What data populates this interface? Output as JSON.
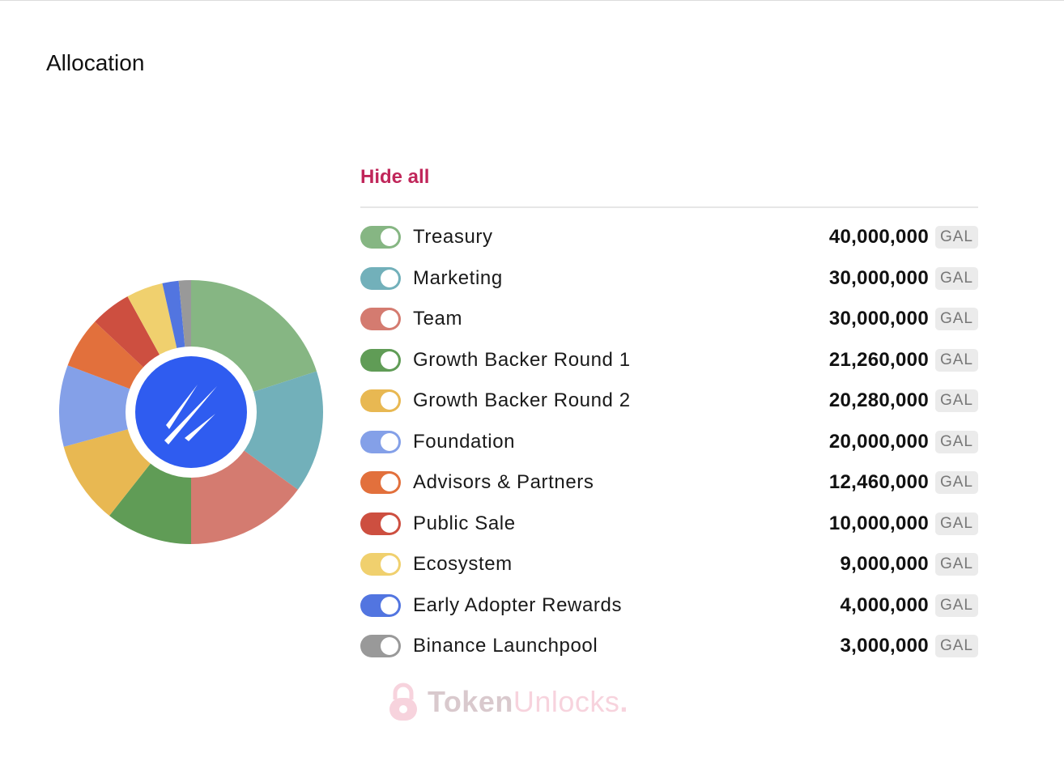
{
  "section": {
    "title": "Allocation"
  },
  "legend_controls": {
    "hide_all_label": "Hide all"
  },
  "unit": "GAL",
  "logo": {
    "icon": "gal-logo-icon",
    "color": "#2f5cf0"
  },
  "watermark": {
    "brand_part1": "Token",
    "brand_part2": "Unlocks",
    "brand_dot": "."
  },
  "chart_data": {
    "type": "pie",
    "title": "",
    "slices": [
      {
        "label": "Treasury",
        "value": 40000000,
        "display": "40,000,000",
        "color": "#86b683",
        "enabled": true
      },
      {
        "label": "Marketing",
        "value": 30000000,
        "display": "30,000,000",
        "color": "#72b0ba",
        "enabled": true
      },
      {
        "label": "Team",
        "value": 30000000,
        "display": "30,000,000",
        "color": "#d47b70",
        "enabled": true
      },
      {
        "label": "Growth Backer Round 1",
        "value": 21260000,
        "display": "21,260,000",
        "color": "#609c56",
        "enabled": true
      },
      {
        "label": "Growth Backer Round 2",
        "value": 20280000,
        "display": "20,280,000",
        "color": "#e8b852",
        "enabled": true
      },
      {
        "label": "Foundation",
        "value": 20000000,
        "display": "20,000,000",
        "color": "#84a0e8",
        "enabled": true
      },
      {
        "label": "Advisors & Partners",
        "value": 12460000,
        "display": "12,460,000",
        "color": "#e2703c",
        "enabled": true
      },
      {
        "label": "Public Sale",
        "value": 10000000,
        "display": "10,000,000",
        "color": "#cd4f40",
        "enabled": true
      },
      {
        "label": "Ecosystem",
        "value": 9000000,
        "display": "9,000,000",
        "color": "#f0d06e",
        "enabled": true
      },
      {
        "label": "Early Adopter Rewards",
        "value": 4000000,
        "display": "4,000,000",
        "color": "#5275e0",
        "enabled": true
      },
      {
        "label": "Binance Launchpool",
        "value": 3000000,
        "display": "3,000,000",
        "color": "#999999",
        "enabled": true
      }
    ]
  }
}
